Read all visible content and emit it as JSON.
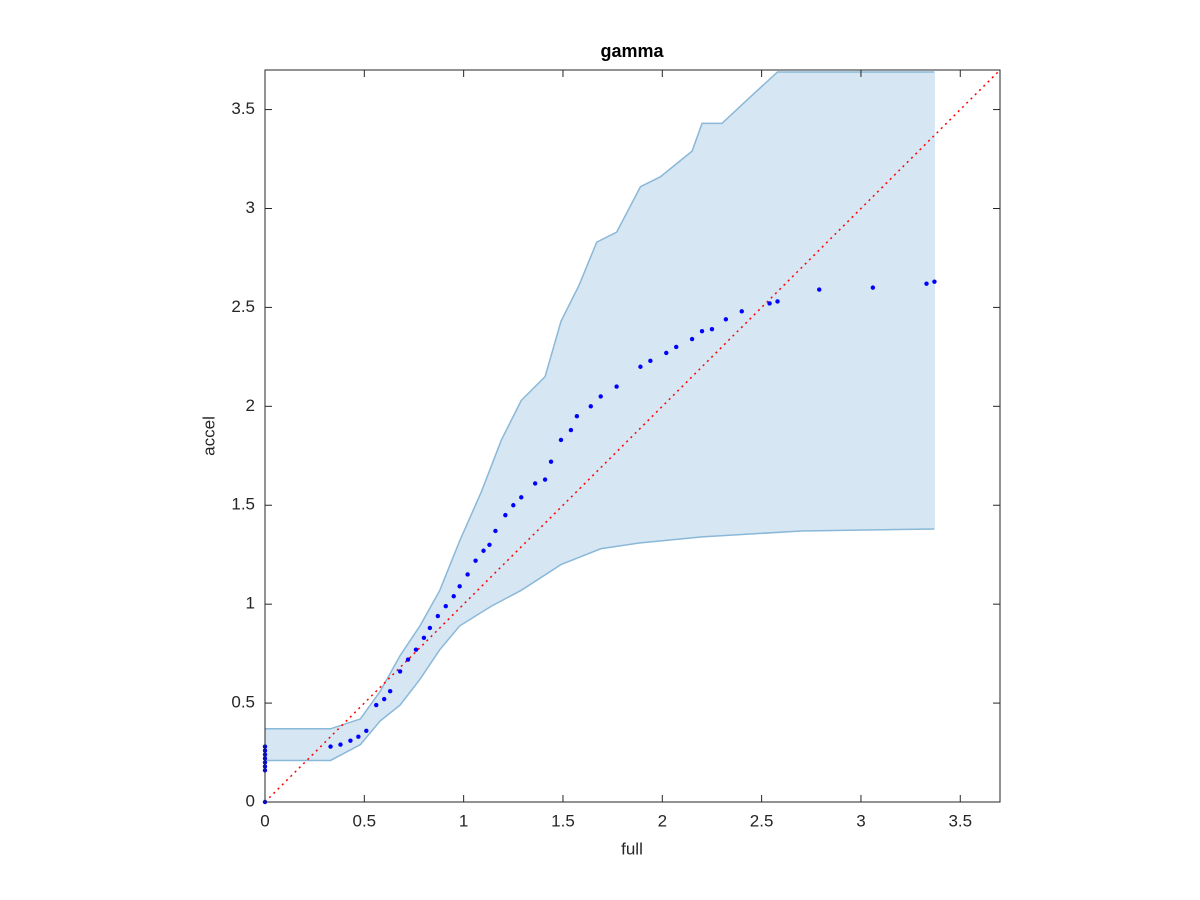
{
  "chart_data": {
    "type": "scatter",
    "title": "gamma",
    "x_label": "full",
    "y_label": "accel",
    "xlim": [
      0,
      3.7
    ],
    "ylim": [
      0,
      3.7
    ],
    "xticks": [
      0,
      0.5,
      1,
      1.5,
      2,
      2.5,
      3,
      3.5
    ],
    "yticks": [
      0,
      0.5,
      1,
      1.5,
      2,
      2.5,
      3,
      3.5
    ],
    "diagonal": true,
    "diagonal_color": "#ff0000",
    "band_color": "#d6e6f3",
    "band_edge_color": "#8ab8d8",
    "band_upper": {
      "x": [
        0,
        0.33,
        0.48,
        0.58,
        0.68,
        0.78,
        0.88,
        0.98,
        1.09,
        1.19,
        1.29,
        1.41,
        1.49,
        1.58,
        1.67,
        1.77,
        1.89,
        1.99,
        2.15,
        2.2,
        2.3,
        2.45,
        2.58,
        3.37
      ],
      "y": [
        0.37,
        0.37,
        0.42,
        0.56,
        0.74,
        0.89,
        1.07,
        1.32,
        1.57,
        1.83,
        2.03,
        2.15,
        2.43,
        2.61,
        2.83,
        2.88,
        3.11,
        3.16,
        3.29,
        3.43,
        3.43,
        3.57,
        3.69,
        3.69
      ]
    },
    "band_lower": {
      "x": [
        0,
        0.33,
        0.48,
        0.58,
        0.68,
        0.78,
        0.88,
        0.98,
        1.14,
        1.29,
        1.49,
        1.69,
        1.89,
        2.2,
        2.7,
        3.37
      ],
      "y": [
        0.21,
        0.21,
        0.29,
        0.41,
        0.49,
        0.62,
        0.77,
        0.89,
        0.99,
        1.07,
        1.2,
        1.28,
        1.31,
        1.34,
        1.37,
        1.38
      ]
    },
    "series": [
      {
        "color": "#0000ff",
        "x": [
          0,
          0,
          0,
          0,
          0,
          0,
          0,
          0,
          0.33,
          0.38,
          0.43,
          0.47,
          0.51,
          0.56,
          0.6,
          0.63,
          0.68,
          0.72,
          0.76,
          0.8,
          0.83,
          0.87,
          0.91,
          0.95,
          0.98,
          1.02,
          1.06,
          1.1,
          1.13,
          1.16,
          1.21,
          1.25,
          1.29,
          1.36,
          1.41,
          1.44,
          1.49,
          1.54,
          1.57,
          1.64,
          1.69,
          1.77,
          1.89,
          1.94,
          2.02,
          2.07,
          2.15,
          2.2,
          2.25,
          2.32,
          2.4,
          2.54,
          2.58,
          2.79,
          3.06,
          3.33,
          3.37
        ],
        "y": [
          0,
          0.16,
          0.18,
          0.2,
          0.22,
          0.24,
          0.26,
          0.28,
          0.28,
          0.29,
          0.31,
          0.33,
          0.36,
          0.49,
          0.52,
          0.56,
          0.66,
          0.72,
          0.77,
          0.83,
          0.88,
          0.94,
          0.99,
          1.04,
          1.09,
          1.15,
          1.22,
          1.27,
          1.3,
          1.37,
          1.45,
          1.5,
          1.54,
          1.61,
          1.63,
          1.72,
          1.83,
          1.88,
          1.95,
          2.0,
          2.05,
          2.1,
          2.2,
          2.23,
          2.27,
          2.3,
          2.34,
          2.38,
          2.39,
          2.44,
          2.48,
          2.52,
          2.53,
          2.59,
          2.6,
          2.62,
          2.63
        ]
      }
    ]
  }
}
